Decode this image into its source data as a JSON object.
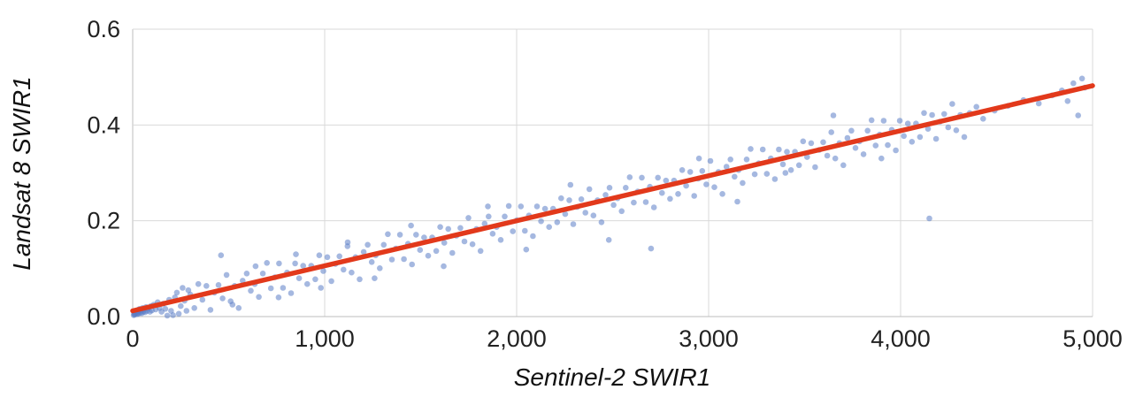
{
  "chart_data": {
    "type": "scatter",
    "title": "",
    "xlabel": "Sentinel-2 SWIR1",
    "ylabel": "Landsat 8 SWIR1",
    "xlim": [
      0,
      5000
    ],
    "ylim": [
      0,
      0.6
    ],
    "grid": true,
    "legend": "none",
    "x_ticks": [
      {
        "v": 0,
        "label": "0"
      },
      {
        "v": 1000,
        "label": "1,000"
      },
      {
        "v": 2000,
        "label": "2,000"
      },
      {
        "v": 3000,
        "label": "3,000"
      },
      {
        "v": 4000,
        "label": "4,000"
      },
      {
        "v": 5000,
        "label": "5,000"
      }
    ],
    "y_ticks": [
      {
        "v": 0,
        "label": "0.0"
      },
      {
        "v": 0.2,
        "label": "0.2"
      },
      {
        "v": 0.4,
        "label": "0.4"
      },
      {
        "v": 0.6,
        "label": "0.6"
      }
    ],
    "colors": {
      "points": "#5b7ec7",
      "trendline": "#e2391b",
      "grid": "#d9d9d9",
      "axis": "#bdbdbd",
      "text": "#222222"
    },
    "trendline": {
      "x1": 0,
      "y1": 0.012,
      "x2": 5000,
      "y2": 0.482
    },
    "points": [
      [
        5,
        0.003
      ],
      [
        8,
        0.006
      ],
      [
        10,
        0.004
      ],
      [
        12,
        0.009
      ],
      [
        15,
        0.007
      ],
      [
        18,
        0.012
      ],
      [
        20,
        0.01
      ],
      [
        22,
        0.005
      ],
      [
        25,
        0.008
      ],
      [
        28,
        0.014
      ],
      [
        30,
        0.006
      ],
      [
        33,
        0.011
      ],
      [
        36,
        0.016
      ],
      [
        40,
        0.008
      ],
      [
        44,
        0.013
      ],
      [
        48,
        0.007
      ],
      [
        52,
        0.018
      ],
      [
        56,
        0.01
      ],
      [
        60,
        0.015
      ],
      [
        65,
        0.009
      ],
      [
        70,
        0.02
      ],
      [
        75,
        0.012
      ],
      [
        80,
        0.017
      ],
      [
        90,
        0.01
      ],
      [
        95,
        0.022
      ],
      [
        100,
        0.013
      ],
      [
        110,
        0.025
      ],
      [
        120,
        0.015
      ],
      [
        130,
        0.03
      ],
      [
        140,
        0.018
      ],
      [
        150,
        0.01
      ],
      [
        160,
        0.027
      ],
      [
        170,
        0.016
      ],
      [
        180,
        0.002
      ],
      [
        190,
        0.035
      ],
      [
        200,
        0.012
      ],
      [
        210,
        0.003
      ],
      [
        220,
        0.04
      ],
      [
        230,
        0.05
      ],
      [
        240,
        0.006
      ],
      [
        250,
        0.022
      ],
      [
        260,
        0.06
      ],
      [
        270,
        0.033
      ],
      [
        280,
        0.012
      ],
      [
        290,
        0.055
      ],
      [
        300,
        0.046
      ],
      [
        321,
        0.018
      ],
      [
        342,
        0.068
      ],
      [
        363,
        0.035
      ],
      [
        384,
        0.064
      ],
      [
        405,
        0.014
      ],
      [
        426,
        0.05
      ],
      [
        447,
        0.066
      ],
      [
        468,
        0.038
      ],
      [
        489,
        0.087
      ],
      [
        510,
        0.032
      ],
      [
        531,
        0.064
      ],
      [
        552,
        0.018
      ],
      [
        573,
        0.075
      ],
      [
        594,
        0.09
      ],
      [
        615,
        0.054
      ],
      [
        636,
        0.068
      ],
      [
        657,
        0.041
      ],
      [
        678,
        0.09
      ],
      [
        699,
        0.112
      ],
      [
        720,
        0.059
      ],
      [
        741,
        0.082
      ],
      [
        762,
        0.111
      ],
      [
        783,
        0.06
      ],
      [
        804,
        0.092
      ],
      [
        825,
        0.049
      ],
      [
        846,
        0.111
      ],
      [
        867,
        0.08
      ],
      [
        888,
        0.106
      ],
      [
        909,
        0.068
      ],
      [
        930,
        0.106
      ],
      [
        951,
        0.078
      ],
      [
        972,
        0.128
      ],
      [
        993,
        0.095
      ],
      [
        1014,
        0.124
      ],
      [
        1035,
        0.074
      ],
      [
        1056,
        0.11
      ],
      [
        1077,
        0.126
      ],
      [
        1098,
        0.098
      ],
      [
        1119,
        0.147
      ],
      [
        1140,
        0.092
      ],
      [
        1161,
        0.124
      ],
      [
        1182,
        0.078
      ],
      [
        1203,
        0.135
      ],
      [
        1224,
        0.15
      ],
      [
        1245,
        0.114
      ],
      [
        1266,
        0.128
      ],
      [
        1287,
        0.101
      ],
      [
        1308,
        0.15
      ],
      [
        1329,
        0.172
      ],
      [
        1350,
        0.119
      ],
      [
        1371,
        0.142
      ],
      [
        1392,
        0.171
      ],
      [
        1413,
        0.12
      ],
      [
        1434,
        0.152
      ],
      [
        1455,
        0.109
      ],
      [
        1476,
        0.171
      ],
      [
        1497,
        0.139
      ],
      [
        1518,
        0.165
      ],
      [
        1539,
        0.127
      ],
      [
        1560,
        0.165
      ],
      [
        1581,
        0.137
      ],
      [
        1602,
        0.187
      ],
      [
        1623,
        0.154
      ],
      [
        1644,
        0.183
      ],
      [
        1665,
        0.133
      ],
      [
        1686,
        0.169
      ],
      [
        1707,
        0.185
      ],
      [
        1728,
        0.157
      ],
      [
        1749,
        0.206
      ],
      [
        1770,
        0.151
      ],
      [
        1791,
        0.183
      ],
      [
        1812,
        0.137
      ],
      [
        1833,
        0.194
      ],
      [
        1854,
        0.209
      ],
      [
        1875,
        0.173
      ],
      [
        1896,
        0.187
      ],
      [
        1917,
        0.16
      ],
      [
        1938,
        0.209
      ],
      [
        1959,
        0.231
      ],
      [
        1980,
        0.178
      ],
      [
        2001,
        0.201
      ],
      [
        2022,
        0.23
      ],
      [
        2043,
        0.179
      ],
      [
        2064,
        0.211
      ],
      [
        2085,
        0.168
      ],
      [
        2106,
        0.23
      ],
      [
        2127,
        0.199
      ],
      [
        2148,
        0.225
      ],
      [
        2169,
        0.187
      ],
      [
        2190,
        0.225
      ],
      [
        2211,
        0.197
      ],
      [
        2232,
        0.247
      ],
      [
        2253,
        0.214
      ],
      [
        2274,
        0.243
      ],
      [
        2295,
        0.193
      ],
      [
        2316,
        0.229
      ],
      [
        2337,
        0.245
      ],
      [
        2358,
        0.217
      ],
      [
        2379,
        0.266
      ],
      [
        2400,
        0.211
      ],
      [
        2421,
        0.243
      ],
      [
        2442,
        0.197
      ],
      [
        2463,
        0.254
      ],
      [
        2484,
        0.269
      ],
      [
        2505,
        0.233
      ],
      [
        2526,
        0.247
      ],
      [
        2547,
        0.22
      ],
      [
        2568,
        0.269
      ],
      [
        2589,
        0.291
      ],
      [
        2610,
        0.238
      ],
      [
        2631,
        0.261
      ],
      [
        2652,
        0.29
      ],
      [
        2673,
        0.239
      ],
      [
        2694,
        0.271
      ],
      [
        2715,
        0.228
      ],
      [
        2736,
        0.29
      ],
      [
        2757,
        0.258
      ],
      [
        2778,
        0.284
      ],
      [
        2799,
        0.246
      ],
      [
        2820,
        0.284
      ],
      [
        2841,
        0.256
      ],
      [
        2862,
        0.306
      ],
      [
        2883,
        0.273
      ],
      [
        2904,
        0.302
      ],
      [
        2925,
        0.252
      ],
      [
        2946,
        0.288
      ],
      [
        2967,
        0.304
      ],
      [
        2988,
        0.276
      ],
      [
        3009,
        0.325
      ],
      [
        3030,
        0.27
      ],
      [
        3051,
        0.302
      ],
      [
        3072,
        0.256
      ],
      [
        3093,
        0.313
      ],
      [
        3114,
        0.328
      ],
      [
        3135,
        0.292
      ],
      [
        3156,
        0.306
      ],
      [
        3177,
        0.279
      ],
      [
        3198,
        0.328
      ],
      [
        3219,
        0.35
      ],
      [
        3240,
        0.297
      ],
      [
        3261,
        0.32
      ],
      [
        3282,
        0.349
      ],
      [
        3303,
        0.298
      ],
      [
        3324,
        0.33
      ],
      [
        3345,
        0.287
      ],
      [
        3366,
        0.349
      ],
      [
        3387,
        0.318
      ],
      [
        3408,
        0.344
      ],
      [
        3429,
        0.306
      ],
      [
        3450,
        0.344
      ],
      [
        3471,
        0.316
      ],
      [
        3492,
        0.366
      ],
      [
        3513,
        0.333
      ],
      [
        3534,
        0.362
      ],
      [
        3555,
        0.312
      ],
      [
        3576,
        0.348
      ],
      [
        3597,
        0.364
      ],
      [
        3618,
        0.336
      ],
      [
        3639,
        0.385
      ],
      [
        3660,
        0.33
      ],
      [
        3681,
        0.362
      ],
      [
        3702,
        0.316
      ],
      [
        3723,
        0.373
      ],
      [
        3744,
        0.388
      ],
      [
        3765,
        0.352
      ],
      [
        3786,
        0.366
      ],
      [
        3807,
        0.339
      ],
      [
        3828,
        0.388
      ],
      [
        3849,
        0.41
      ],
      [
        3870,
        0.357
      ],
      [
        3891,
        0.38
      ],
      [
        3912,
        0.409
      ],
      [
        3933,
        0.358
      ],
      [
        3954,
        0.39
      ],
      [
        3975,
        0.347
      ],
      [
        3996,
        0.409
      ],
      [
        4017,
        0.377
      ],
      [
        4038,
        0.403
      ],
      [
        4059,
        0.365
      ],
      [
        4080,
        0.403
      ],
      [
        4101,
        0.375
      ],
      [
        4122,
        0.425
      ],
      [
        4143,
        0.392
      ],
      [
        4164,
        0.421
      ],
      [
        4185,
        0.371
      ],
      [
        4206,
        0.407
      ],
      [
        4227,
        0.423
      ],
      [
        4248,
        0.395
      ],
      [
        4269,
        0.444
      ],
      [
        4290,
        0.389
      ],
      [
        4311,
        0.421
      ],
      [
        4332,
        0.375
      ],
      [
        460,
        0.128
      ],
      [
        520,
        0.025
      ],
      [
        640,
        0.105
      ],
      [
        760,
        0.04
      ],
      [
        850,
        0.13
      ],
      [
        980,
        0.06
      ],
      [
        1120,
        0.155
      ],
      [
        1260,
        0.08
      ],
      [
        1450,
        0.19
      ],
      [
        1620,
        0.105
      ],
      [
        1850,
        0.23
      ],
      [
        2050,
        0.14
      ],
      [
        2280,
        0.275
      ],
      [
        2480,
        0.16
      ],
      [
        2700,
        0.142
      ],
      [
        2950,
        0.33
      ],
      [
        3150,
        0.24
      ],
      [
        3400,
        0.3
      ],
      [
        3650,
        0.42
      ],
      [
        3900,
        0.33
      ],
      [
        4150,
        0.205
      ],
      [
        4360,
        0.425
      ],
      [
        4395,
        0.438
      ],
      [
        4430,
        0.413
      ],
      [
        4490,
        0.43
      ],
      [
        4560,
        0.44
      ],
      [
        4640,
        0.452
      ],
      [
        4720,
        0.445
      ],
      [
        4790,
        0.462
      ],
      [
        4840,
        0.472
      ],
      [
        4870,
        0.45
      ],
      [
        4900,
        0.487
      ],
      [
        4925,
        0.42
      ],
      [
        4945,
        0.497
      ],
      [
        4960,
        0.478
      ]
    ]
  }
}
